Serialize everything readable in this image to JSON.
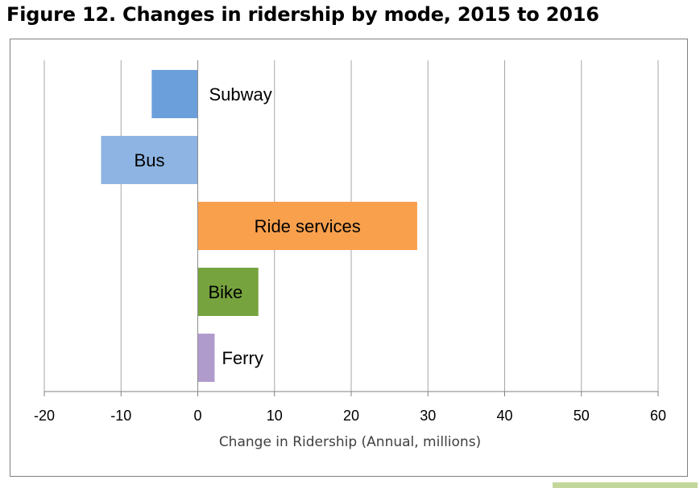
{
  "title": "Figure 12. Changes in ridership by mode, 2015 to 2016",
  "chart_data": {
    "type": "bar",
    "orientation": "horizontal",
    "title": "Figure 12. Changes in ridership by mode, 2015 to 2016",
    "xlabel": "Change in Ridership (Annual, millions)",
    "ylabel": "",
    "xlim": [
      -20,
      60
    ],
    "xticks": [
      -20,
      -10,
      0,
      10,
      20,
      30,
      40,
      50,
      60
    ],
    "grid": "vertical",
    "legend": "none",
    "categories": [
      "Subway",
      "Bus",
      "Ride services",
      "Bike",
      "Ferry"
    ],
    "values": [
      -6,
      -12.6,
      28.6,
      7.9,
      2.2
    ],
    "colors": [
      "#6a9fdc",
      "#8db4e2",
      "#f9a04d",
      "#77a33e",
      "#b09ccc"
    ]
  }
}
